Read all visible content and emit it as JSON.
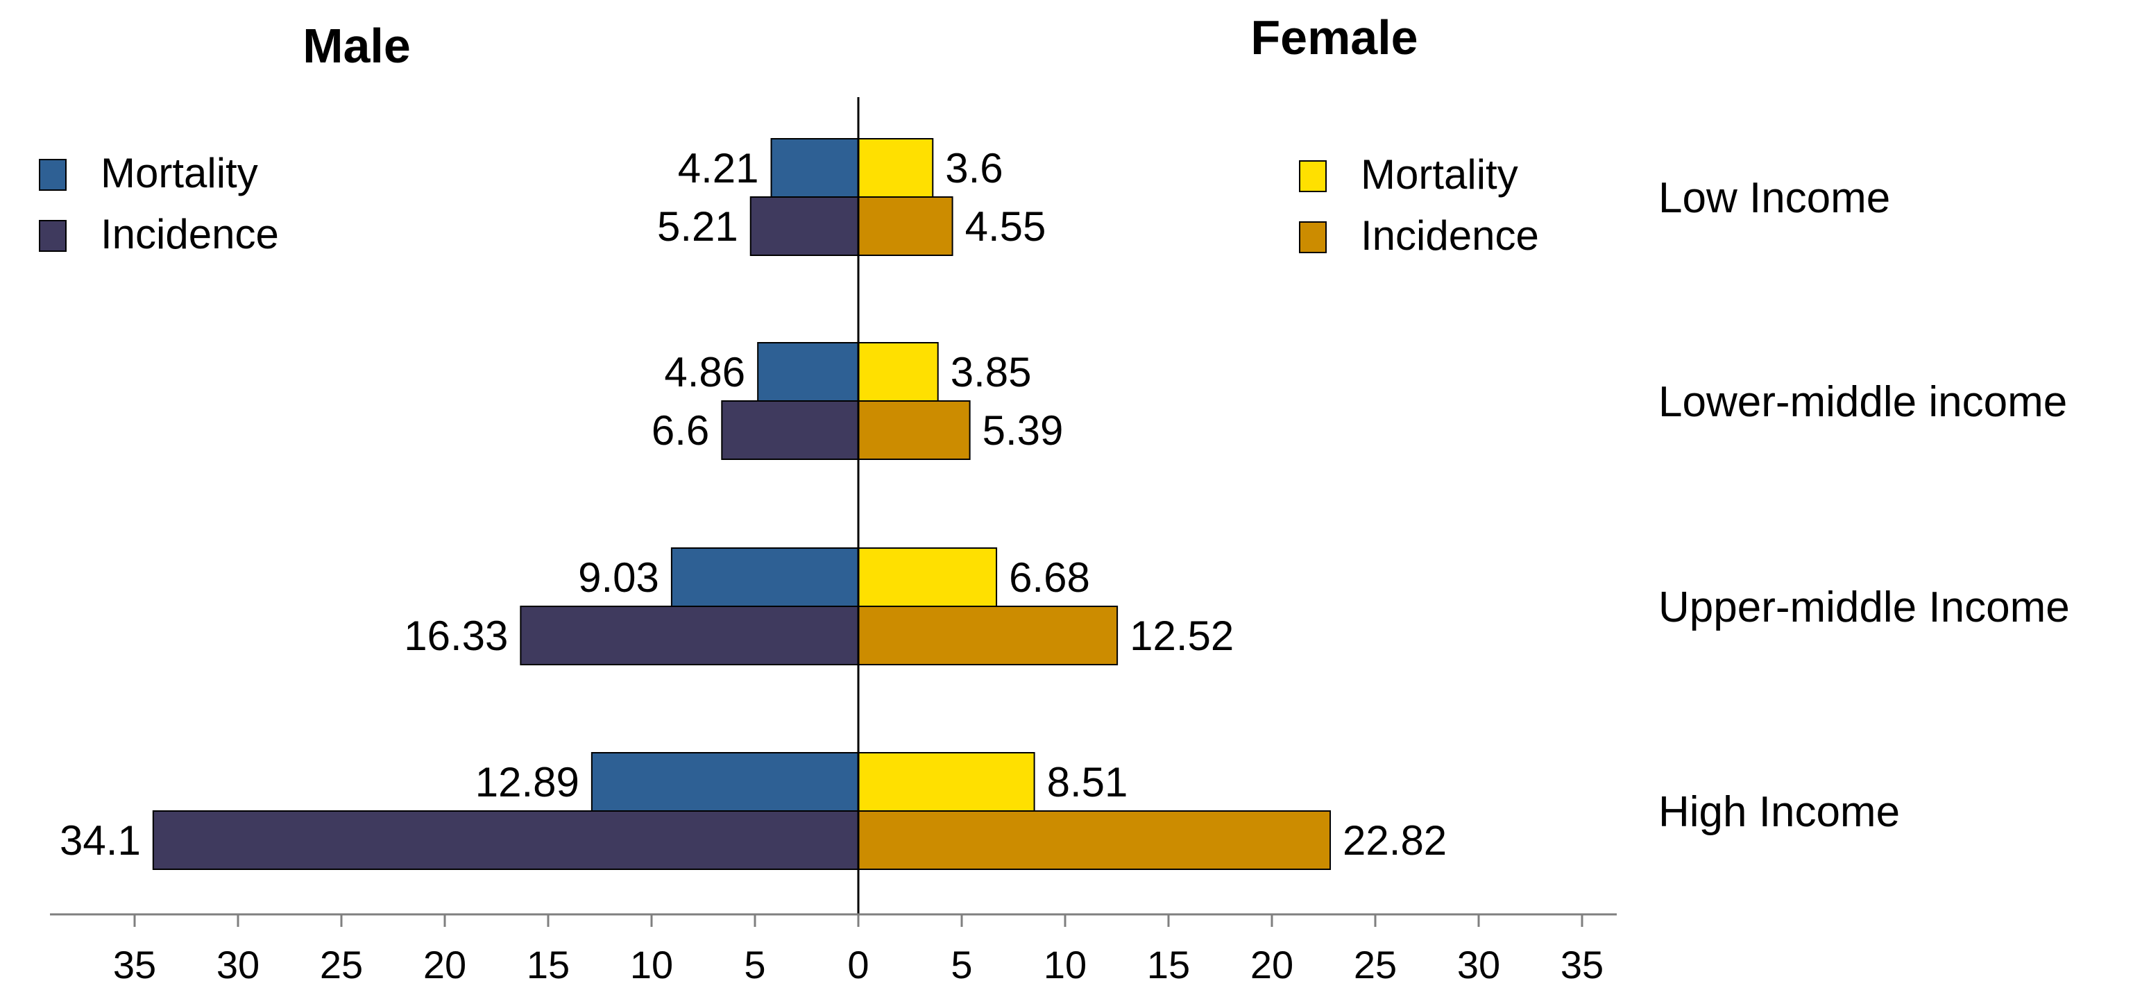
{
  "chart_data": {
    "type": "bar",
    "orientation": "horizontal",
    "layout": "back-to-back",
    "panels": [
      {
        "title": "Male",
        "side": "left"
      },
      {
        "title": "Female",
        "side": "right"
      }
    ],
    "categories": [
      "Low Income",
      "Lower-middle income",
      "Upper-middle Income",
      "High Income"
    ],
    "series": [
      {
        "name": "Mortality",
        "panel": "Male",
        "color": "#2e6094",
        "values": [
          4.21,
          4.86,
          9.03,
          12.89
        ],
        "labels": [
          "4.21",
          "4.86",
          "9.03",
          "12.89"
        ]
      },
      {
        "name": "Incidence",
        "panel": "Male",
        "color": "#3f3a5e",
        "values": [
          5.21,
          6.6,
          16.33,
          34.1
        ],
        "labels": [
          "5.21",
          "6.6",
          "16.33",
          "34.1"
        ]
      },
      {
        "name": "Mortality",
        "panel": "Female",
        "color": "#ffe000",
        "values": [
          3.6,
          3.85,
          6.68,
          8.51
        ],
        "labels": [
          "3.6",
          "3.85",
          "6.68",
          "8.51"
        ]
      },
      {
        "name": "Incidence",
        "panel": "Female",
        "color": "#cc8c00",
        "values": [
          4.55,
          5.39,
          12.52,
          22.82
        ],
        "labels": [
          "4.55",
          "5.39",
          "12.52",
          "22.82"
        ]
      }
    ],
    "x_axis": {
      "ticks": [
        35,
        30,
        25,
        20,
        15,
        10,
        5,
        0,
        5,
        10,
        15,
        20,
        25,
        30,
        35
      ],
      "range_left": [
        0,
        35
      ],
      "range_right": [
        0,
        35
      ]
    },
    "legends": [
      {
        "panel": "Male",
        "placement": "top-left",
        "entries": [
          "Mortality",
          "Incidence"
        ]
      },
      {
        "panel": "Female",
        "placement": "top-right",
        "entries": [
          "Mortality",
          "Incidence"
        ]
      }
    ],
    "grid": false
  }
}
